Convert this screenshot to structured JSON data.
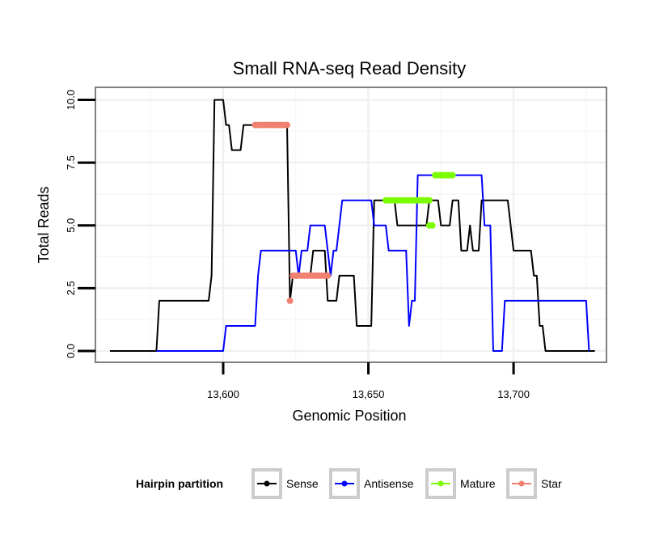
{
  "chart_data": {
    "type": "line",
    "title": "Small RNA-seq Read Density",
    "xlabel": "Genomic Position",
    "ylabel": "Total Reads",
    "xlim": [
      13556,
      13732
    ],
    "ylim": [
      -0.45,
      10.5
    ],
    "x_ticks": [
      13600,
      13650,
      13700
    ],
    "x_tick_labels": [
      "13,600",
      "13,650",
      "13,700"
    ],
    "y_ticks": [
      0,
      2.5,
      5,
      7.5,
      10
    ],
    "y_tick_labels": [
      "0.0",
      "2.5",
      "5.0",
      "7.5",
      "10.0"
    ],
    "grid": true,
    "legend": {
      "title": "Hairpin partition",
      "placement": "bottom",
      "entries": [
        "Sense",
        "Antisense",
        "Mature",
        "Star"
      ]
    },
    "series": [
      {
        "name": "Sense",
        "color": "#000000",
        "kind": "line",
        "points": [
          [
            13561,
            0
          ],
          [
            13577,
            0
          ],
          [
            13578,
            2
          ],
          [
            13595,
            2
          ],
          [
            13596,
            3
          ],
          [
            13597,
            10
          ],
          [
            13600,
            10
          ],
          [
            13601,
            9
          ],
          [
            13602,
            9
          ],
          [
            13603,
            8
          ],
          [
            13606,
            8
          ],
          [
            13607,
            9
          ],
          [
            13622,
            9
          ],
          [
            13623,
            2
          ],
          [
            13624,
            3
          ],
          [
            13630,
            3
          ],
          [
            13631,
            4
          ],
          [
            13635,
            4
          ],
          [
            13636,
            2
          ],
          [
            13639,
            2
          ],
          [
            13640,
            3
          ],
          [
            13645,
            3
          ],
          [
            13646,
            1
          ],
          [
            13651,
            1
          ],
          [
            13652,
            6
          ],
          [
            13659,
            6
          ],
          [
            13660,
            5
          ],
          [
            13670,
            5
          ],
          [
            13671,
            6
          ],
          [
            13674,
            6
          ],
          [
            13675,
            5
          ],
          [
            13678,
            5
          ],
          [
            13679,
            6
          ],
          [
            13681,
            6
          ],
          [
            13682,
            4
          ],
          [
            13684,
            4
          ],
          [
            13685,
            5
          ],
          [
            13686,
            4
          ],
          [
            13688,
            4
          ],
          [
            13689,
            6
          ],
          [
            13698,
            6
          ],
          [
            13699,
            5
          ],
          [
            13700,
            4
          ],
          [
            13706,
            4
          ],
          [
            13707,
            3
          ],
          [
            13708,
            3
          ],
          [
            13709,
            1
          ],
          [
            13710,
            1
          ],
          [
            13711,
            0
          ],
          [
            13728,
            0
          ]
        ]
      },
      {
        "name": "Antisense",
        "color": "#0000ff",
        "kind": "line",
        "points": [
          [
            13577,
            0
          ],
          [
            13600,
            0
          ],
          [
            13601,
            1
          ],
          [
            13611,
            1
          ],
          [
            13612,
            3
          ],
          [
            13613,
            4
          ],
          [
            13625,
            4
          ],
          [
            13626,
            3
          ],
          [
            13627,
            4
          ],
          [
            13629,
            4
          ],
          [
            13630,
            5
          ],
          [
            13635,
            5
          ],
          [
            13636,
            4
          ],
          [
            13637,
            3
          ],
          [
            13638,
            4
          ],
          [
            13639,
            4
          ],
          [
            13640,
            5
          ],
          [
            13641,
            6
          ],
          [
            13651,
            6
          ],
          [
            13652,
            5
          ],
          [
            13656,
            5
          ],
          [
            13657,
            4
          ],
          [
            13663,
            4
          ],
          [
            13664,
            1
          ],
          [
            13665,
            2
          ],
          [
            13666,
            2
          ],
          [
            13667,
            7
          ],
          [
            13689,
            7
          ],
          [
            13690,
            5
          ],
          [
            13692,
            5
          ],
          [
            13693,
            0
          ],
          [
            13696,
            0
          ],
          [
            13697,
            2
          ],
          [
            13702,
            2
          ],
          [
            13725,
            2
          ],
          [
            13726,
            0
          ]
        ]
      },
      {
        "name": "Mature",
        "color": "#7cfc00",
        "kind": "dots",
        "points": [
          [
            13656,
            6
          ],
          [
            13657,
            6
          ],
          [
            13658,
            6
          ],
          [
            13659,
            6
          ],
          [
            13660,
            6
          ],
          [
            13661,
            6
          ],
          [
            13662,
            6
          ],
          [
            13663,
            6
          ],
          [
            13664,
            6
          ],
          [
            13665,
            6
          ],
          [
            13666,
            6
          ],
          [
            13667,
            6
          ],
          [
            13668,
            6
          ],
          [
            13669,
            6
          ],
          [
            13670,
            6
          ],
          [
            13671,
            6
          ],
          [
            13671,
            5
          ],
          [
            13672,
            5
          ],
          [
            13673,
            7
          ],
          [
            13674,
            7
          ],
          [
            13675,
            7
          ],
          [
            13676,
            7
          ],
          [
            13677,
            7
          ],
          [
            13678,
            7
          ],
          [
            13679,
            7
          ]
        ]
      },
      {
        "name": "Star",
        "color": "#f08070",
        "kind": "dots",
        "points": [
          [
            13611,
            9
          ],
          [
            13612,
            9
          ],
          [
            13613,
            9
          ],
          [
            13614,
            9
          ],
          [
            13615,
            9
          ],
          [
            13616,
            9
          ],
          [
            13617,
            9
          ],
          [
            13618,
            9
          ],
          [
            13619,
            9
          ],
          [
            13620,
            9
          ],
          [
            13621,
            9
          ],
          [
            13622,
            9
          ],
          [
            13623,
            2
          ],
          [
            13624,
            3
          ],
          [
            13625,
            3
          ],
          [
            13626,
            3
          ],
          [
            13627,
            3
          ],
          [
            13628,
            3
          ],
          [
            13629,
            3
          ],
          [
            13630,
            3
          ],
          [
            13631,
            3
          ],
          [
            13632,
            3
          ],
          [
            13633,
            3
          ],
          [
            13634,
            3
          ],
          [
            13635,
            3
          ],
          [
            13636,
            3
          ]
        ]
      }
    ]
  }
}
